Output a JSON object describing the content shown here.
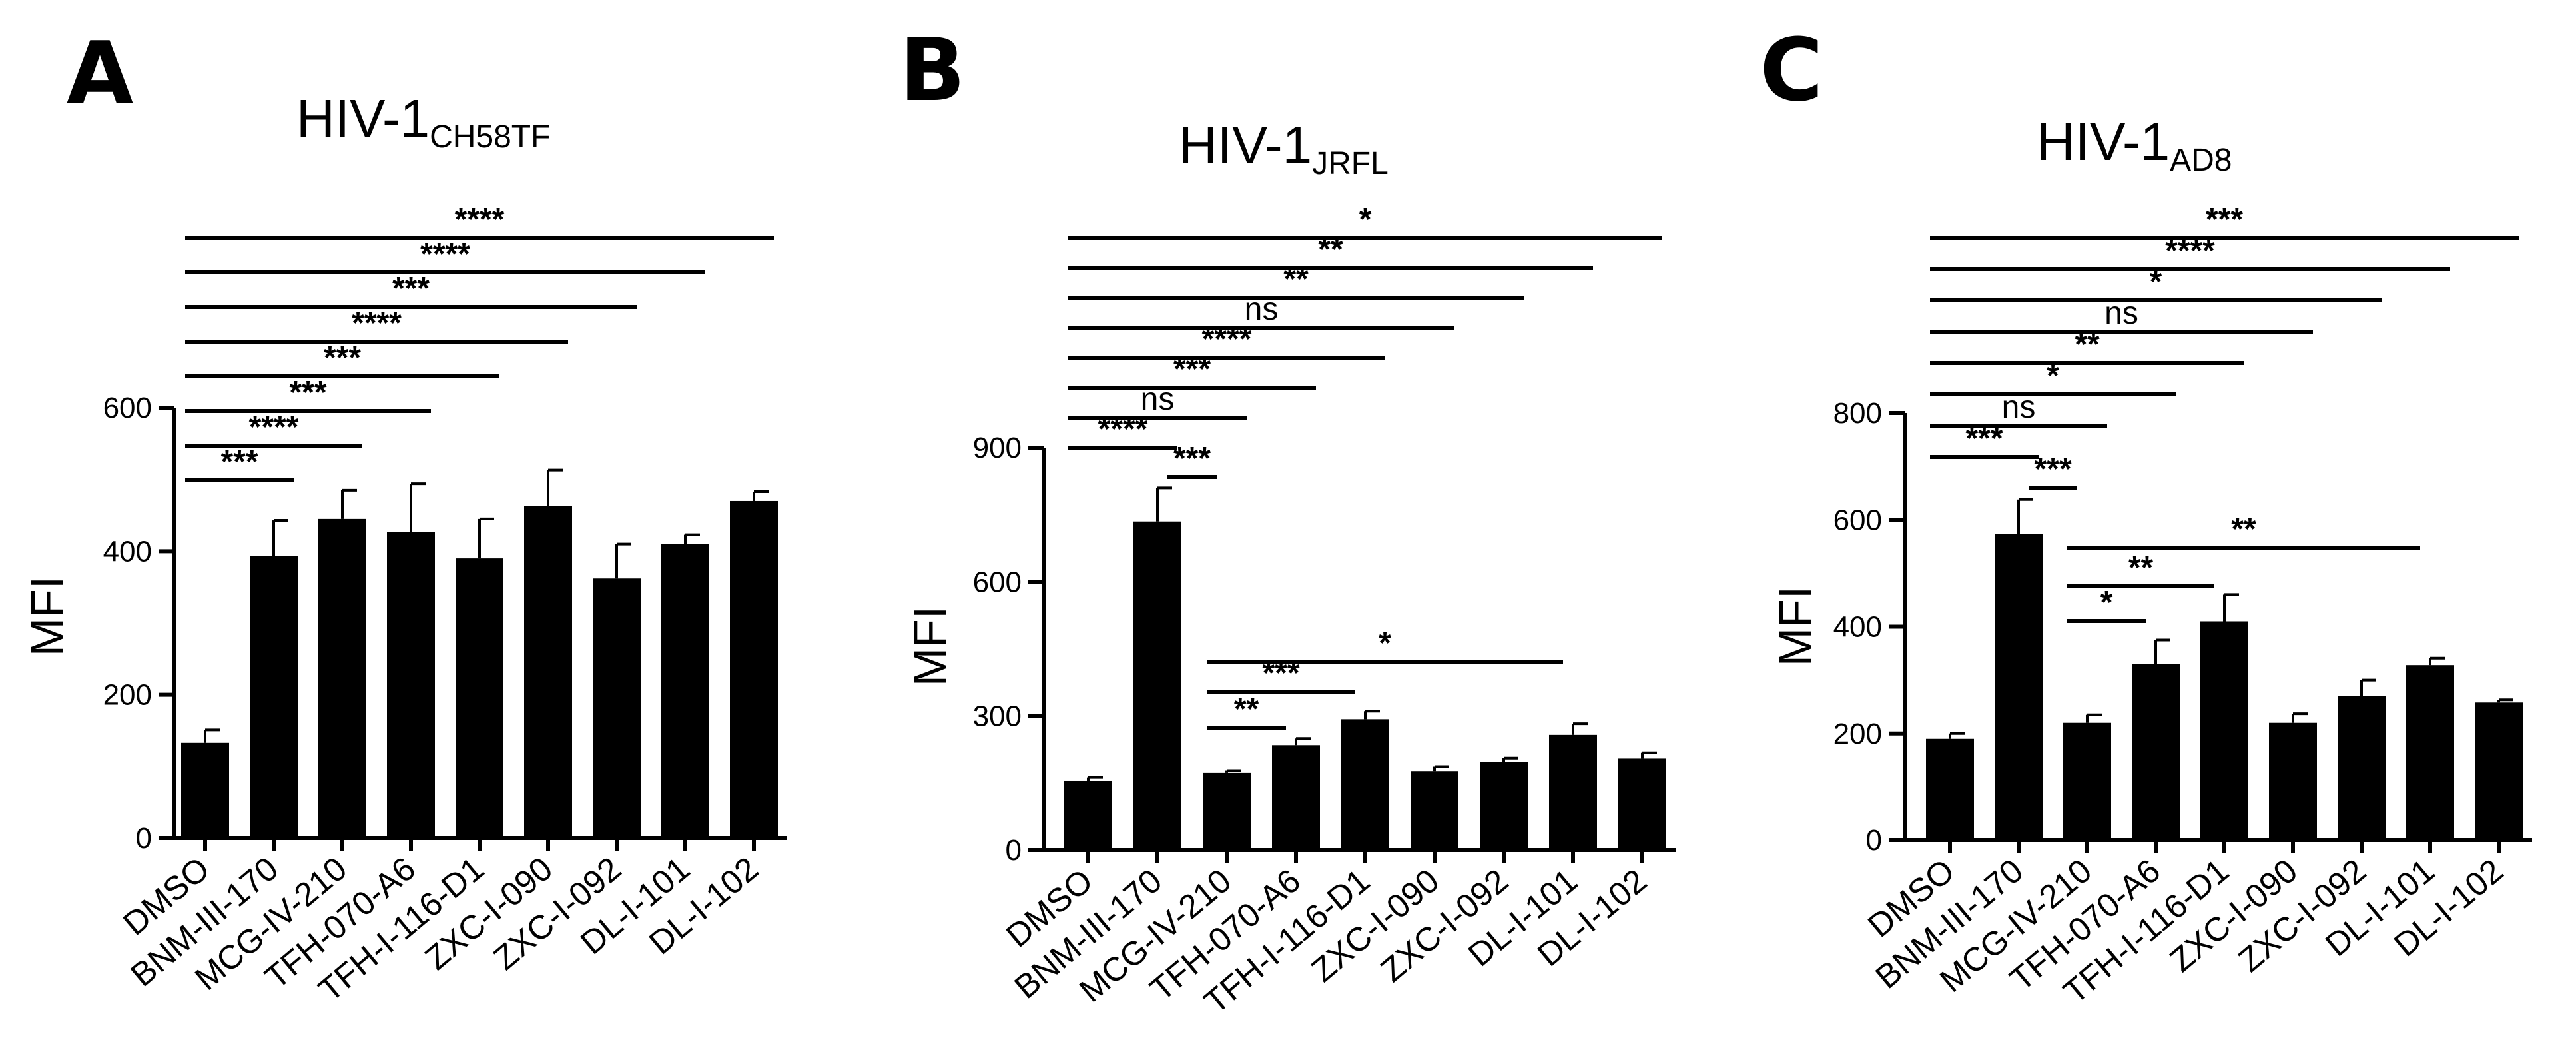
{
  "chart_data": [
    {
      "type": "bar",
      "panel": "A",
      "title": "HIV-1",
      "title_sub": "CH58TF",
      "ylabel": "MFI",
      "xlabel": "",
      "ylim": [
        0,
        600
      ],
      "yticks": [
        0,
        200,
        400,
        600
      ],
      "categories": [
        "DMSO",
        "BNM-III-170",
        "MCG-IV-210",
        "TFH-070-A6",
        "TFH-I-116-D1",
        "ZXC-I-090",
        "ZXC-I-092",
        "DL-I-101",
        "DL-I-102"
      ],
      "values": [
        133,
        393,
        445,
        427,
        390,
        463,
        362,
        410,
        470
      ],
      "errors": [
        18,
        50,
        40,
        67,
        55,
        50,
        48,
        13,
        13
      ],
      "significance": [
        {
          "from": 0,
          "to": 8,
          "label": "****"
        },
        {
          "from": 0,
          "to": 7,
          "label": "****"
        },
        {
          "from": 0,
          "to": 6,
          "label": "***"
        },
        {
          "from": 0,
          "to": 5,
          "label": "****"
        },
        {
          "from": 0,
          "to": 4,
          "label": "***"
        },
        {
          "from": 0,
          "to": 3,
          "label": "***"
        },
        {
          "from": 0,
          "to": 2,
          "label": "****"
        },
        {
          "from": 0,
          "to": 1,
          "label": "***"
        }
      ]
    },
    {
      "type": "bar",
      "panel": "B",
      "title": "HIV-1",
      "title_sub": "JRFL",
      "ylabel": "MFI",
      "xlabel": "",
      "ylim": [
        0,
        900
      ],
      "yticks": [
        0,
        300,
        600,
        900
      ],
      "categories": [
        "DMSO",
        "BNM-III-170",
        "MCG-IV-210",
        "TFH-070-A6",
        "TFH-I-116-D1",
        "ZXC-I-090",
        "ZXC-I-092",
        "DL-I-101",
        "DL-I-102"
      ],
      "values": [
        155,
        735,
        173,
        235,
        293,
        177,
        198,
        258,
        205
      ],
      "errors": [
        8,
        75,
        5,
        15,
        18,
        10,
        8,
        25,
        13
      ],
      "significance": [
        {
          "from": 0,
          "to": 8,
          "label": "*"
        },
        {
          "from": 0,
          "to": 7,
          "label": "**"
        },
        {
          "from": 0,
          "to": 6,
          "label": "**"
        },
        {
          "from": 0,
          "to": 5,
          "label": "ns"
        },
        {
          "from": 0,
          "to": 4,
          "label": "****"
        },
        {
          "from": 0,
          "to": 3,
          "label": "***"
        },
        {
          "from": 0,
          "to": 2,
          "label": "ns"
        },
        {
          "from": 0,
          "to": 1,
          "label": "****"
        },
        {
          "from": 1,
          "to": 2,
          "label": "***"
        },
        {
          "from": 2,
          "to": 7,
          "label": "*"
        },
        {
          "from": 2,
          "to": 4,
          "label": "***"
        },
        {
          "from": 2,
          "to": 3,
          "label": "**"
        }
      ]
    },
    {
      "type": "bar",
      "panel": "C",
      "title": "HIV-1",
      "title_sub": "AD8",
      "ylabel": "MFI",
      "xlabel": "",
      "ylim": [
        0,
        800
      ],
      "yticks": [
        0,
        200,
        400,
        600,
        800
      ],
      "categories": [
        "DMSO",
        "BNM-III-170",
        "MCG-IV-210",
        "TFH-070-A6",
        "TFH-I-116-D1",
        "ZXC-I-090",
        "ZXC-I-092",
        "DL-I-101",
        "DL-I-102"
      ],
      "values": [
        190,
        573,
        220,
        330,
        410,
        220,
        270,
        328,
        258
      ],
      "errors": [
        10,
        65,
        15,
        45,
        50,
        17,
        30,
        13,
        5
      ],
      "significance": [
        {
          "from": 0,
          "to": 8,
          "label": "***"
        },
        {
          "from": 0,
          "to": 7,
          "label": "****"
        },
        {
          "from": 0,
          "to": 6,
          "label": "*"
        },
        {
          "from": 0,
          "to": 5,
          "label": "ns"
        },
        {
          "from": 0,
          "to": 4,
          "label": "**"
        },
        {
          "from": 0,
          "to": 3,
          "label": "*"
        },
        {
          "from": 0,
          "to": 2,
          "label": "ns"
        },
        {
          "from": 0,
          "to": 1,
          "label": "***"
        },
        {
          "from": 1,
          "to": 2,
          "label": "***"
        },
        {
          "from": 2,
          "to": 7,
          "label": "**"
        },
        {
          "from": 2,
          "to": 4,
          "label": "**"
        },
        {
          "from": 2,
          "to": 3,
          "label": "*"
        }
      ]
    }
  ]
}
